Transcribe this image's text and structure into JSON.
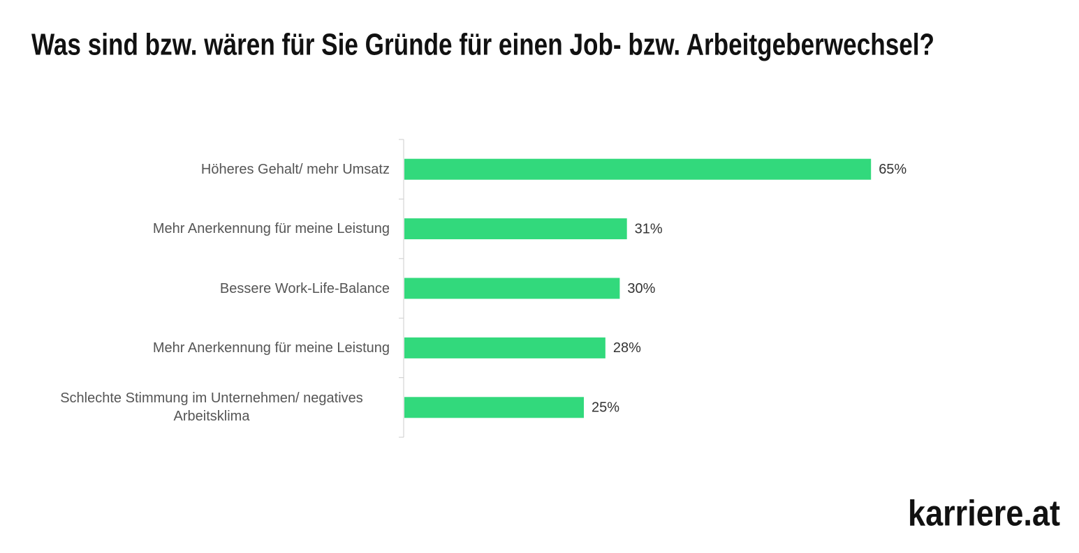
{
  "chart_data": {
    "type": "bar",
    "orientation": "horizontal",
    "title": "Was sind bzw. wären für Sie Gründe für einen Job- bzw. Arbeitgeberwechsel?",
    "categories": [
      "Höheres Gehalt/ mehr Umsatz",
      "Mehr Anerkennung für meine Leistung",
      "Bessere Work-Life-Balance",
      "Mehr Anerkennung für meine Leistung",
      "Schlechte Stimmung im Unternehmen/ negatives Arbeitsklima"
    ],
    "values": [
      65,
      31,
      30,
      28,
      25
    ],
    "value_labels": [
      "65%",
      "31%",
      "30%",
      "28%",
      "25%"
    ],
    "color": "#32d97c"
  },
  "logo": "karriere.at"
}
